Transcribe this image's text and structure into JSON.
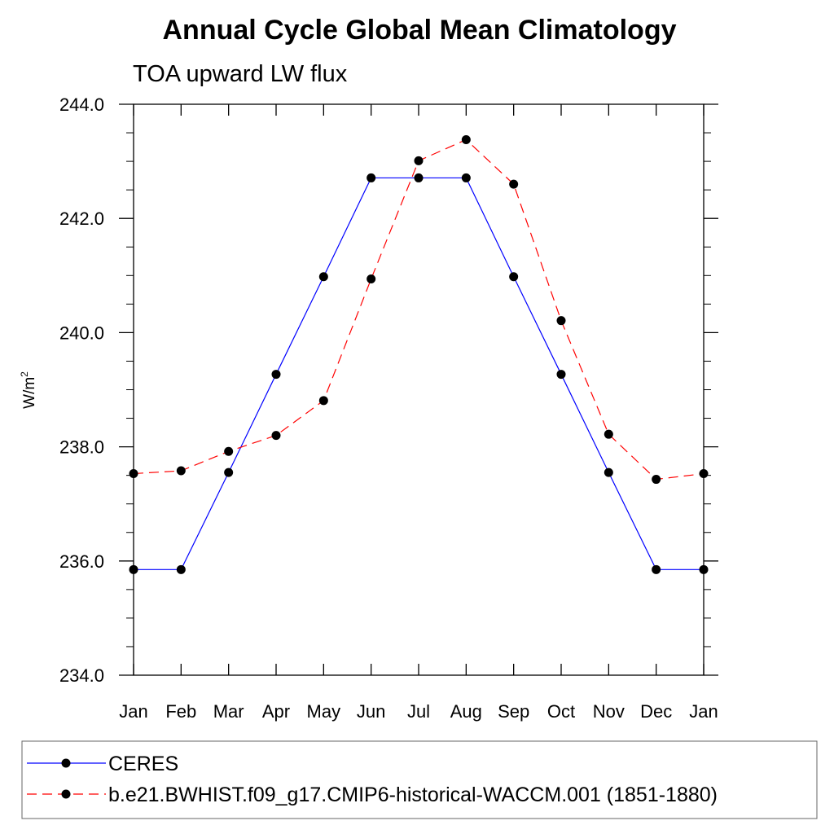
{
  "page": {
    "title": "Annual Cycle Global Mean Climatology",
    "subtitle": "TOA upward LW flux"
  },
  "chart_data": {
    "type": "line",
    "title": "Annual Cycle Global Mean Climatology",
    "subtitle": "TOA upward LW flux",
    "xlabel": "",
    "ylabel": "W/m²",
    "ylabel_base": "W/m",
    "ylabel_sup": "2",
    "categories": [
      "Jan",
      "Feb",
      "Mar",
      "Apr",
      "May",
      "Jun",
      "Jul",
      "Aug",
      "Sep",
      "Oct",
      "Nov",
      "Dec",
      "Jan"
    ],
    "ylim": [
      234.0,
      244.0
    ],
    "yticks": [
      "234.0",
      "236.0",
      "238.0",
      "240.0",
      "242.0",
      "244.0"
    ],
    "yticks_values": [
      234,
      236,
      238,
      240,
      242,
      244
    ],
    "grid": false,
    "legend_position": "bottom",
    "series": [
      {
        "name": "CERES",
        "color": "#0000ff",
        "line_style": "solid",
        "marker": "filled-circle",
        "values": [
          235.85,
          235.85,
          237.55,
          239.27,
          240.98,
          242.71,
          242.71,
          242.71,
          240.98,
          239.27,
          237.55,
          235.85,
          235.85
        ]
      },
      {
        "name": "b.e21.BWHIST.f09_g17.CMIP6-historical-WACCM.001 (1851-1880)",
        "color": "#ff0000",
        "line_style": "dashed",
        "marker": "filled-circle",
        "values": [
          237.53,
          237.58,
          237.92,
          238.2,
          238.81,
          240.94,
          243.01,
          243.38,
          242.6,
          240.21,
          238.22,
          237.43,
          237.53
        ]
      }
    ]
  }
}
